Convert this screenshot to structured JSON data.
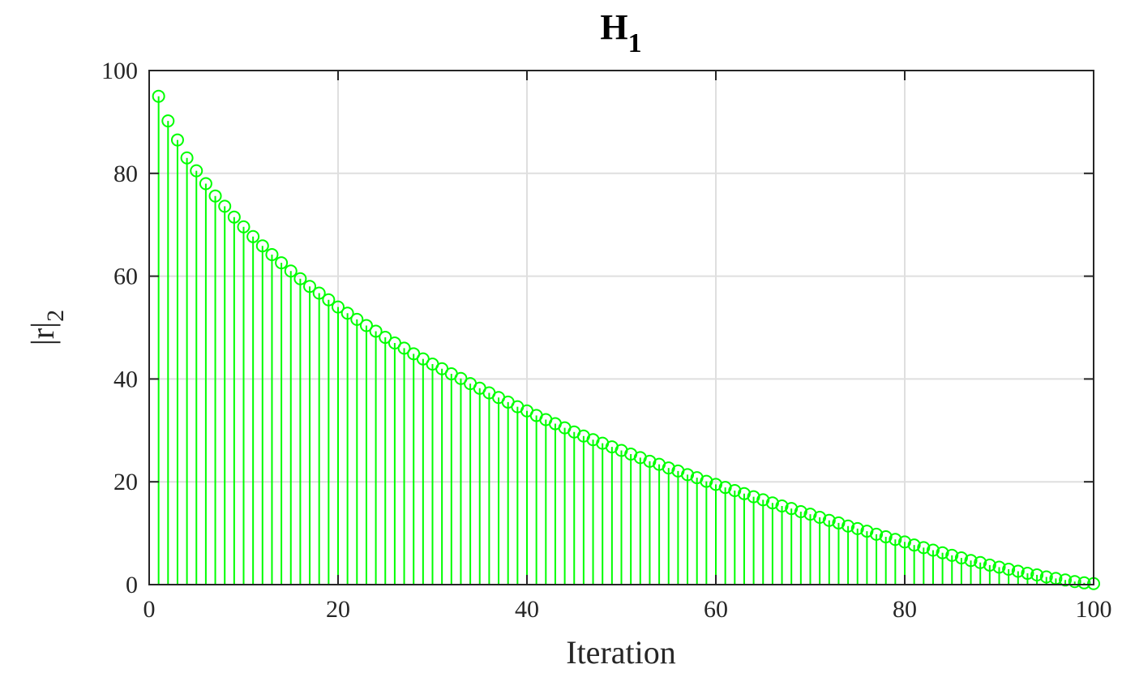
{
  "chart_data": {
    "type": "stem",
    "title": {
      "main": "H",
      "subscript": "1"
    },
    "xlabel": "Iteration",
    "ylabel": {
      "main": "|r|",
      "subscript": "2"
    },
    "xlim": [
      0,
      100
    ],
    "ylim": [
      0,
      100
    ],
    "xticks": [
      0,
      20,
      40,
      60,
      80,
      100
    ],
    "yticks": [
      0,
      20,
      40,
      60,
      80,
      100
    ],
    "grid": true,
    "series": [
      {
        "color": "#00ff00",
        "marker": "circle",
        "x": [
          1,
          2,
          3,
          4,
          5,
          6,
          7,
          8,
          9,
          10,
          11,
          12,
          13,
          14,
          15,
          16,
          17,
          18,
          19,
          20,
          21,
          22,
          23,
          24,
          25,
          26,
          27,
          28,
          29,
          30,
          31,
          32,
          33,
          34,
          35,
          36,
          37,
          38,
          39,
          40,
          41,
          42,
          43,
          44,
          45,
          46,
          47,
          48,
          49,
          50,
          51,
          52,
          53,
          54,
          55,
          56,
          57,
          58,
          59,
          60,
          61,
          62,
          63,
          64,
          65,
          66,
          67,
          68,
          69,
          70,
          71,
          72,
          73,
          74,
          75,
          76,
          77,
          78,
          79,
          80,
          81,
          82,
          83,
          84,
          85,
          86,
          87,
          88,
          89,
          90,
          91,
          92,
          93,
          94,
          95,
          96,
          97,
          98,
          99,
          100
        ],
        "y": [
          95.0,
          90.2,
          86.5,
          83.0,
          80.5,
          78.0,
          75.6,
          73.6,
          71.5,
          69.6,
          67.7,
          65.9,
          64.2,
          62.6,
          61.0,
          59.5,
          58.0,
          56.7,
          55.4,
          54.0,
          52.8,
          51.6,
          50.4,
          49.3,
          48.1,
          47.0,
          46.0,
          44.9,
          43.9,
          42.9,
          42.0,
          41.0,
          40.1,
          39.1,
          38.2,
          37.3,
          36.4,
          35.5,
          34.6,
          33.8,
          32.9,
          32.1,
          31.3,
          30.5,
          29.7,
          28.9,
          28.2,
          27.5,
          26.8,
          26.1,
          25.4,
          24.7,
          24.0,
          23.4,
          22.7,
          22.1,
          21.4,
          20.8,
          20.1,
          19.5,
          18.9,
          18.3,
          17.7,
          17.1,
          16.5,
          15.9,
          15.3,
          14.8,
          14.2,
          13.7,
          13.1,
          12.5,
          12.0,
          11.4,
          10.9,
          10.4,
          9.8,
          9.3,
          8.8,
          8.3,
          7.7,
          7.2,
          6.7,
          6.2,
          5.7,
          5.2,
          4.7,
          4.3,
          3.8,
          3.4,
          3.0,
          2.6,
          2.2,
          1.9,
          1.5,
          1.2,
          0.9,
          0.6,
          0.35,
          0.2
        ]
      }
    ]
  },
  "style": {
    "grid_color": "#dfdfdf",
    "axis_color": "#262626",
    "background": "#ffffff"
  }
}
